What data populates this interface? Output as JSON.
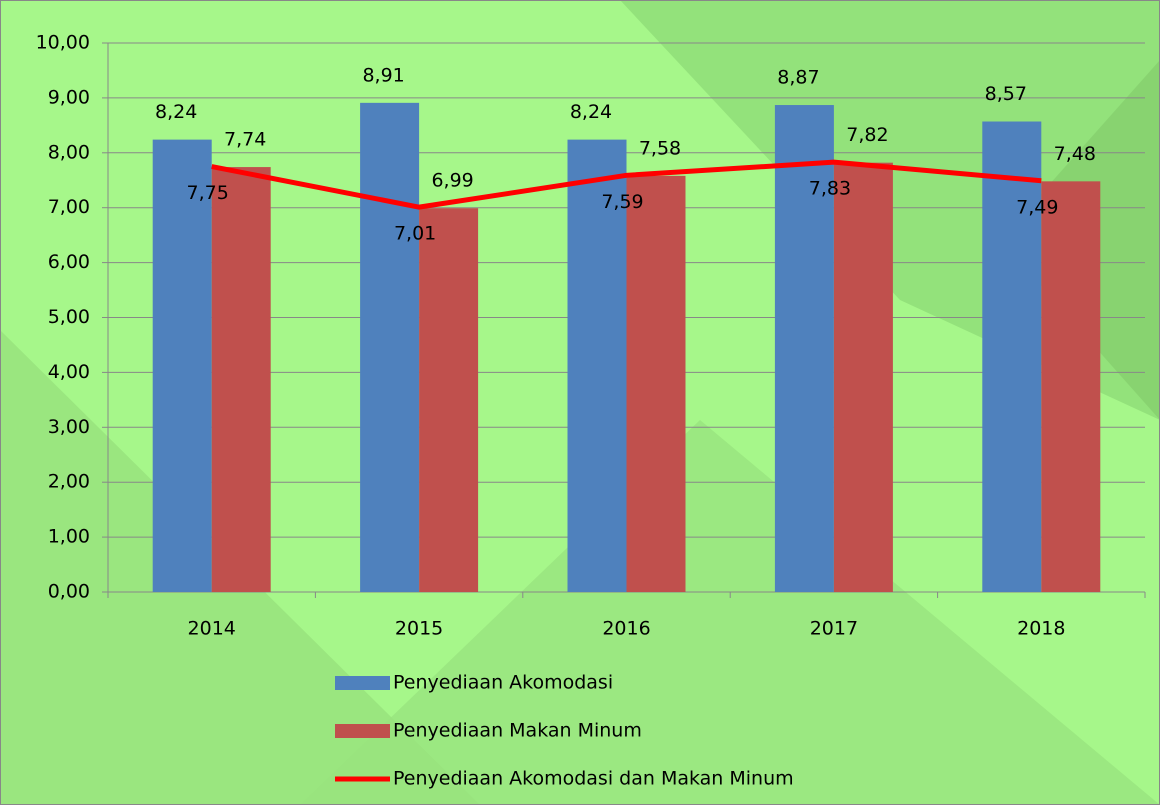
{
  "chart_data": {
    "type": "bar_line",
    "categories": [
      "2014",
      "2015",
      "2016",
      "2017",
      "2018"
    ],
    "series": [
      {
        "name": "Penyediaan Akomodasi",
        "type": "bar",
        "color": "#4f81bd",
        "values": [
          8.24,
          8.91,
          8.24,
          8.87,
          8.57
        ],
        "value_labels": [
          "8,24",
          "8,91",
          "8,24",
          "8,87",
          "8,57"
        ]
      },
      {
        "name": "Penyediaan Makan Minum",
        "type": "bar",
        "color": "#c0504d",
        "values": [
          7.74,
          6.99,
          7.58,
          7.82,
          7.48
        ],
        "value_labels": [
          "7,74",
          "6,99",
          "7,58",
          "7,82",
          "7,48"
        ]
      },
      {
        "name": "Penyediaan Akomodasi dan Makan Minum",
        "type": "line",
        "color": "#ff0000",
        "values": [
          7.75,
          7.01,
          7.59,
          7.83,
          7.49
        ],
        "value_labels": [
          "7,75",
          "7,01",
          "7,59",
          "7,83",
          "7,49"
        ]
      }
    ],
    "ylim": [
      0,
      10
    ],
    "yticks": [
      {
        "value": 0,
        "label": "0,00"
      },
      {
        "value": 1,
        "label": "1,00"
      },
      {
        "value": 2,
        "label": "2,00"
      },
      {
        "value": 3,
        "label": "3,00"
      },
      {
        "value": 4,
        "label": "4,00"
      },
      {
        "value": 5,
        "label": "5,00"
      },
      {
        "value": 6,
        "label": "6,00"
      },
      {
        "value": 7,
        "label": "7,00"
      },
      {
        "value": 8,
        "label": "8,00"
      },
      {
        "value": 9,
        "label": "9,00"
      },
      {
        "value": 10,
        "label": "10,00"
      }
    ],
    "grid": true,
    "legend": "bottom"
  }
}
